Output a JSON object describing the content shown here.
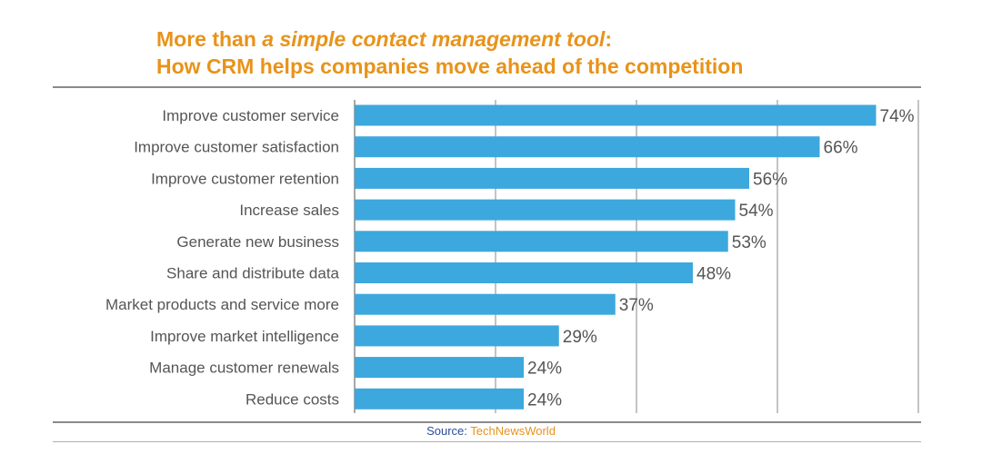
{
  "title": {
    "line1_pre": "More than ",
    "line1_italic": "a simple contact management tool",
    "line1_post": ":",
    "line2": "How CRM helps companies move ahead of the competition"
  },
  "source": {
    "label": "Source: ",
    "name": "TechNewsWorld"
  },
  "colors": {
    "bar": "#3da8dd",
    "title": "#e8931a",
    "gridline": "#8a8a8a",
    "label_text": "#555555",
    "value_text": "#555555"
  },
  "chart_data": {
    "type": "bar",
    "orientation": "horizontal",
    "categories": [
      "Improve customer service",
      "Improve customer satisfaction",
      "Improve customer retention",
      "Increase sales",
      "Generate new business",
      "Share and distribute data",
      "Market products and service more",
      "Improve market intelligence",
      "Manage customer renewals",
      "Reduce costs"
    ],
    "values": [
      74,
      66,
      56,
      54,
      53,
      48,
      37,
      29,
      24,
      24
    ],
    "value_labels": [
      "74%",
      "66%",
      "56%",
      "54%",
      "53%",
      "48%",
      "37%",
      "29%",
      "24%",
      "24%"
    ],
    "xlim": [
      0,
      80
    ],
    "grid": true,
    "legend": "none"
  }
}
